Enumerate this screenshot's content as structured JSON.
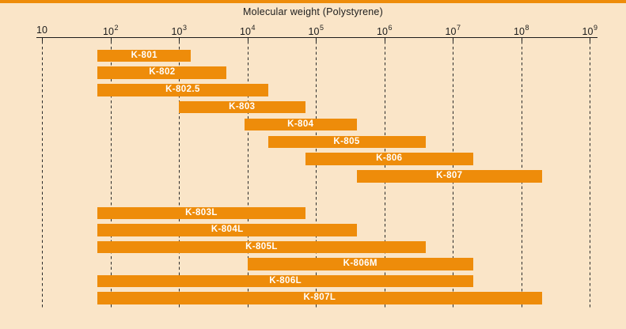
{
  "colors": {
    "background": "#FAE5C8",
    "bar_orange": "#EE8C0A",
    "axis_ink": "#1c1c1c",
    "grid_ink": "#2b2b2b",
    "bar_label_text": "#FFFFFF"
  },
  "chart_data": {
    "type": "bar",
    "subtype": "horizontal-log-range-bars",
    "title": "Molecular weight (Polystyrene)",
    "xlabel": "Molecular weight (Polystyrene)",
    "ylabel": "",
    "x_scale": "log10",
    "xlim": [
      10,
      1000000000
    ],
    "grid": "vertical-dashed-at-each-decade",
    "legend": "none",
    "x_ticks": [
      {
        "exp": 1,
        "value": 10,
        "base": "10",
        "sup": ""
      },
      {
        "exp": 2,
        "value": 100,
        "base": "10",
        "sup": "2"
      },
      {
        "exp": 3,
        "value": 1000,
        "base": "10",
        "sup": "3"
      },
      {
        "exp": 4,
        "value": 10000,
        "base": "10",
        "sup": "4"
      },
      {
        "exp": 5,
        "value": 100000,
        "base": "10",
        "sup": "5"
      },
      {
        "exp": 6,
        "value": 1000000,
        "base": "10",
        "sup": "6"
      },
      {
        "exp": 7,
        "value": 10000000,
        "base": "10",
        "sup": "7"
      },
      {
        "exp": 8,
        "value": 100000000,
        "base": "10",
        "sup": "8"
      },
      {
        "exp": 9,
        "value": 1000000000,
        "base": "10",
        "sup": "9"
      }
    ],
    "bars": [
      {
        "label": "K-801",
        "group": 1,
        "start": 65,
        "end": 1500
      },
      {
        "label": "K-802",
        "group": 1,
        "start": 65,
        "end": 5000
      },
      {
        "label": "K-802.5",
        "group": 1,
        "start": 65,
        "end": 20000
      },
      {
        "label": "K-803",
        "group": 1,
        "start": 1000,
        "end": 70000
      },
      {
        "label": "K-804",
        "group": 1,
        "start": 9000,
        "end": 400000
      },
      {
        "label": "K-805",
        "group": 1,
        "start": 20000,
        "end": 4000000
      },
      {
        "label": "K-806",
        "group": 1,
        "start": 70000,
        "end": 20000000
      },
      {
        "label": "K-807",
        "group": 1,
        "start": 400000,
        "end": 200000000
      },
      {
        "label": "K-803L",
        "group": 2,
        "start": 65,
        "end": 70000
      },
      {
        "label": "K-804L",
        "group": 2,
        "start": 65,
        "end": 400000
      },
      {
        "label": "K-805L",
        "group": 2,
        "start": 65,
        "end": 4000000
      },
      {
        "label": "K-806M",
        "group": 2,
        "start": 10000,
        "end": 20000000
      },
      {
        "label": "K-806L",
        "group": 2,
        "start": 65,
        "end": 20000000
      },
      {
        "label": "K-807L",
        "group": 2,
        "start": 65,
        "end": 200000000
      }
    ]
  }
}
